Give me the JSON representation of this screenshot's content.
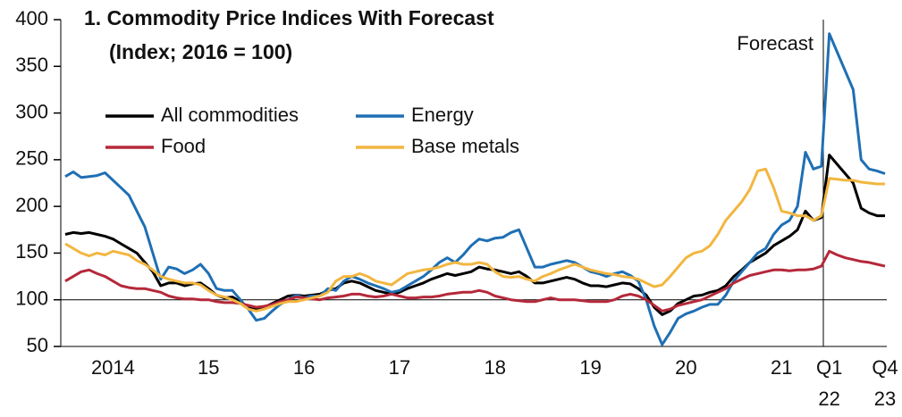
{
  "chart_data": {
    "type": "line",
    "title": "1. Commodity Price Indices With Forecast",
    "subtitle": "(Index; 2016 = 100)",
    "annotation": "Forecast",
    "reference_line": 100,
    "categories": [
      null,
      null,
      null,
      null,
      null,
      null,
      "2014",
      null,
      null,
      null,
      null,
      null,
      null,
      null,
      null,
      null,
      null,
      null,
      "15",
      null,
      null,
      null,
      null,
      null,
      null,
      null,
      null,
      null,
      null,
      null,
      "16",
      null,
      null,
      null,
      null,
      null,
      null,
      null,
      null,
      null,
      null,
      null,
      "17",
      null,
      null,
      null,
      null,
      null,
      null,
      null,
      null,
      null,
      null,
      null,
      "18",
      null,
      null,
      null,
      null,
      null,
      null,
      null,
      null,
      null,
      null,
      null,
      "19",
      null,
      null,
      null,
      null,
      null,
      null,
      null,
      null,
      null,
      null,
      null,
      "20",
      null,
      null,
      null,
      null,
      null,
      null,
      null,
      null,
      null,
      null,
      null,
      "21",
      null,
      null,
      null,
      null,
      null,
      "Q1\n22",
      null,
      null,
      null,
      null,
      null,
      null,
      "Q4\n23"
    ],
    "ylim": [
      50,
      400
    ],
    "yticks": [
      50,
      100,
      150,
      200,
      250,
      300,
      350,
      400
    ],
    "series": [
      {
        "name": "All commodities",
        "color": "#000000",
        "values": [
          170,
          172,
          171,
          172,
          170,
          168,
          165,
          160,
          155,
          150,
          140,
          130,
          115,
          118,
          118,
          115,
          117,
          118,
          112,
          105,
          102,
          103,
          98,
          92,
          90,
          92,
          96,
          100,
          104,
          105,
          104,
          105,
          106,
          110,
          112,
          118,
          120,
          118,
          114,
          110,
          108,
          106,
          108,
          112,
          115,
          118,
          122,
          125,
          128,
          126,
          128,
          130,
          135,
          133,
          132,
          130,
          128,
          130,
          125,
          118,
          118,
          120,
          122,
          124,
          122,
          118,
          115,
          115,
          114,
          116,
          118,
          117,
          112,
          105,
          92,
          84,
          88,
          96,
          100,
          104,
          105,
          108,
          110,
          115,
          125,
          132,
          140,
          145,
          150,
          158,
          163,
          168,
          175,
          195,
          185,
          188,
          255,
          245,
          235,
          225,
          198,
          193,
          190,
          190
        ]
      },
      {
        "name": "Energy",
        "color": "#1f6fb4",
        "values": [
          232,
          237,
          231,
          232,
          233,
          236,
          228,
          220,
          212,
          195,
          178,
          150,
          122,
          135,
          133,
          128,
          132,
          138,
          128,
          112,
          110,
          110,
          100,
          90,
          78,
          80,
          88,
          95,
          100,
          105,
          102,
          104,
          104,
          112,
          110,
          120,
          125,
          122,
          118,
          115,
          112,
          108,
          110,
          115,
          120,
          125,
          132,
          140,
          145,
          140,
          148,
          158,
          165,
          163,
          166,
          167,
          172,
          175,
          155,
          135,
          135,
          138,
          140,
          142,
          140,
          135,
          130,
          128,
          125,
          128,
          130,
          126,
          120,
          100,
          72,
          52,
          65,
          80,
          85,
          88,
          92,
          95,
          95,
          105,
          120,
          130,
          140,
          150,
          155,
          170,
          180,
          185,
          200,
          258,
          240,
          243,
          385,
          365,
          345,
          325,
          250,
          240,
          238,
          235
        ]
      },
      {
        "name": "Food",
        "color": "#b5283a",
        "values": [
          120,
          125,
          130,
          132,
          128,
          125,
          120,
          115,
          113,
          112,
          112,
          110,
          108,
          104,
          102,
          101,
          101,
          100,
          100,
          98,
          97,
          97,
          96,
          94,
          92,
          93,
          95,
          98,
          100,
          103,
          102,
          101,
          100,
          102,
          103,
          104,
          106,
          106,
          104,
          103,
          104,
          106,
          104,
          102,
          102,
          103,
          103,
          104,
          106,
          107,
          108,
          108,
          110,
          108,
          104,
          102,
          100,
          99,
          98,
          98,
          100,
          102,
          100,
          100,
          100,
          99,
          98,
          98,
          98,
          100,
          104,
          106,
          104,
          100,
          94,
          88,
          90,
          94,
          96,
          98,
          100,
          104,
          108,
          112,
          118,
          122,
          126,
          128,
          130,
          132,
          132,
          131,
          132,
          132,
          133,
          136,
          152,
          148,
          145,
          143,
          141,
          140,
          138,
          136
        ]
      },
      {
        "name": "Base metals",
        "color": "#f2b640",
        "values": [
          160,
          155,
          150,
          147,
          150,
          148,
          152,
          150,
          148,
          142,
          138,
          132,
          125,
          122,
          120,
          118,
          118,
          116,
          110,
          105,
          103,
          100,
          96,
          90,
          88,
          90,
          93,
          96,
          98,
          98,
          100,
          102,
          104,
          108,
          120,
          125,
          125,
          128,
          125,
          120,
          118,
          116,
          122,
          128,
          130,
          132,
          133,
          135,
          138,
          140,
          138,
          138,
          140,
          138,
          130,
          125,
          124,
          125,
          122,
          120,
          125,
          128,
          132,
          135,
          138,
          135,
          132,
          130,
          128,
          127,
          125,
          124,
          122,
          118,
          114,
          116,
          125,
          135,
          145,
          150,
          152,
          158,
          170,
          185,
          195,
          205,
          218,
          238,
          240,
          220,
          195,
          193,
          190,
          190,
          185,
          190,
          230,
          229,
          228,
          228,
          226,
          225,
          224,
          224
        ]
      }
    ]
  }
}
